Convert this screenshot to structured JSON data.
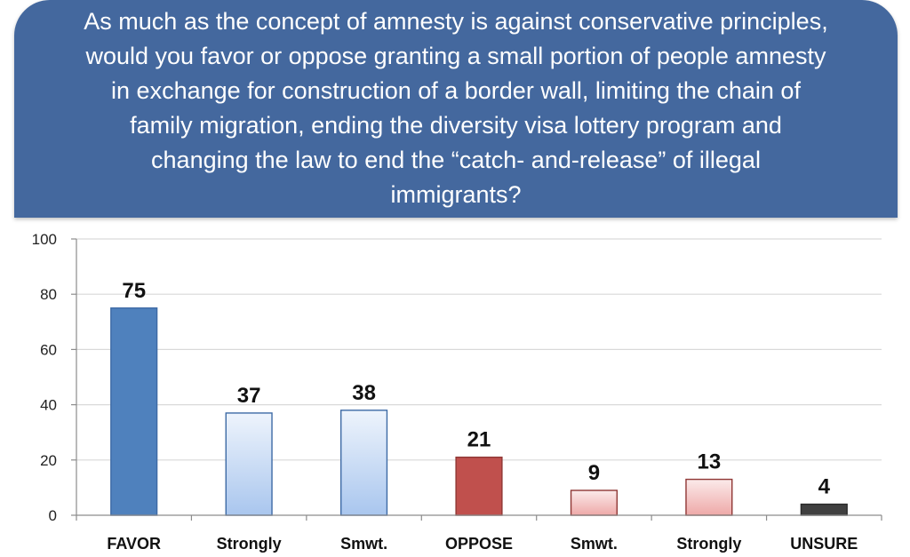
{
  "chart_data": {
    "type": "bar",
    "title": "As much as the concept of amnesty is against conservative principles,\nwould you favor or oppose granting a small portion of people amnesty\nin exchange for construction of a border wall, limiting the chain of\nfamily migration, ending the diversity visa lottery program and\nchanging the law to end the “catch-   and-release” of illegal\nimmigrants?",
    "categories": [
      "FAVOR",
      "Strongly",
      "Smwt.",
      "OPPOSE",
      "Smwt.",
      "Strongly",
      "UNSURE"
    ],
    "values": [
      75,
      37,
      38,
      21,
      9,
      13,
      4
    ],
    "data_labels": [
      "75",
      "37",
      "38",
      "21",
      "9",
      "13",
      "4"
    ],
    "ylim": [
      0,
      100
    ],
    "yticks": [
      0,
      20,
      40,
      60,
      80,
      100
    ],
    "xlabel": "",
    "ylabel": "",
    "grid": true,
    "legend": "none",
    "colors": {
      "favor": "#4f81bd",
      "favor_sub": "#c6d9f1",
      "oppose": "#c0504d",
      "oppose_sub": "#f2c4c3",
      "unsure": "#404040",
      "title_bg": "#44689e"
    },
    "bar_styles": [
      "favor",
      "favor_sub",
      "favor_sub",
      "oppose",
      "oppose_sub",
      "oppose_sub",
      "unsure"
    ]
  }
}
